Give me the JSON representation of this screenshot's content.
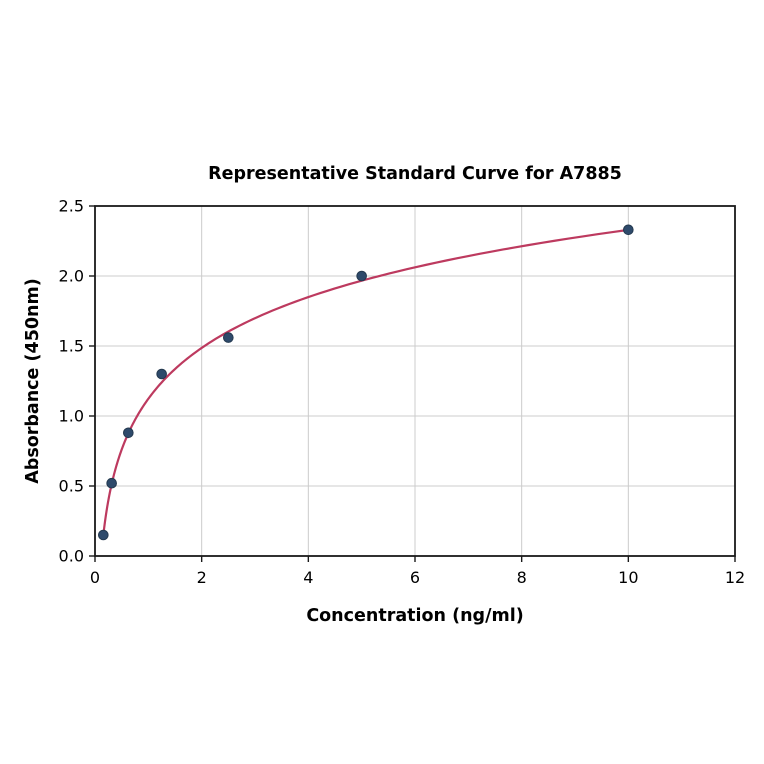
{
  "figure": {
    "background": "#ffffff"
  },
  "chart_data": {
    "type": "scatter",
    "title": "Representative Standard Curve for A7885",
    "xlabel": "Concentration (ng/ml)",
    "ylabel": "Absorbance (450nm)",
    "xlim": [
      0,
      12
    ],
    "ylim": [
      0,
      2.5
    ],
    "xticks": [
      0,
      2,
      4,
      6,
      8,
      10,
      12
    ],
    "xtick_labels": [
      "0",
      "2",
      "4",
      "6",
      "8",
      "10",
      "12"
    ],
    "yticks": [
      0,
      0.5,
      1.0,
      1.5,
      2.0,
      2.5
    ],
    "ytick_labels": [
      "0.0",
      "0.5",
      "1.0",
      "1.5",
      "2.0",
      "2.5"
    ],
    "grid": true,
    "legend": "none",
    "series": [
      {
        "name": "standard-points",
        "type": "scatter",
        "x": [
          0.156,
          0.3125,
          0.625,
          1.25,
          2.5,
          5,
          10
        ],
        "y": [
          0.15,
          0.52,
          0.88,
          1.3,
          1.56,
          2.0,
          2.33
        ]
      },
      {
        "name": "fitted-curve",
        "type": "line",
        "fit": {
          "model": "logarithmic",
          "equation": "y = 0.524*ln(x) + 1.123",
          "a": 0.524,
          "b": 1.123,
          "x_start": 0.156,
          "x_end": 10
        }
      }
    ],
    "colors": {
      "marker_fill": "#2e4a6b",
      "marker_edge": "#24394f",
      "line": "#bd3a5f",
      "grid": "#cccccc",
      "spine": "#1a1a1a",
      "text": "#000000"
    }
  }
}
